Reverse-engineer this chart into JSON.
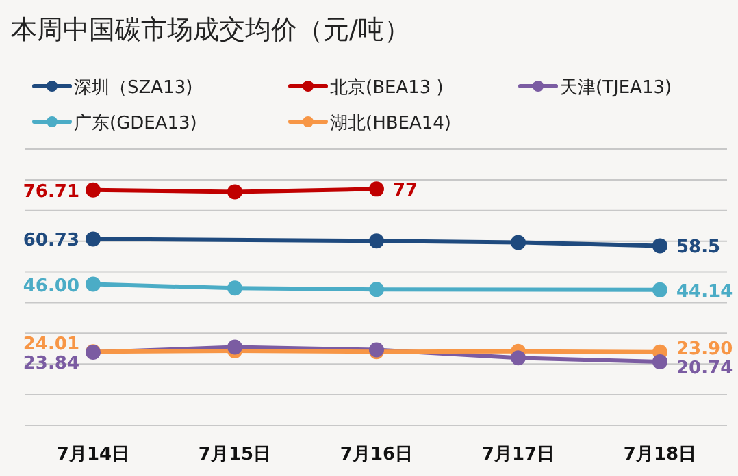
{
  "chart_data": {
    "type": "line",
    "title": "本周中国碳市场成交均价（元/吨）",
    "categories": [
      "7月14日",
      "7月15日",
      "7月16日",
      "7月17日",
      "7月18日"
    ],
    "series": [
      {
        "name": "深圳（SZA13)",
        "color": "#1f4a7e",
        "values": [
          60.73,
          null,
          60.1,
          59.6,
          58.5
        ],
        "value_labels": [
          "60.73",
          null,
          null,
          null,
          "58.5"
        ]
      },
      {
        "name": "北京(BEA13 )",
        "color": "#c00000",
        "values": [
          76.71,
          76.1,
          77,
          null,
          null
        ],
        "value_labels": [
          "76.71",
          null,
          "77",
          null,
          null
        ]
      },
      {
        "name": "天津(TJEA13)",
        "color": "#7b5ca2",
        "values": [
          23.84,
          25.5,
          24.6,
          22.0,
          20.74
        ],
        "value_labels": [
          "23.84",
          null,
          null,
          null,
          "20.74"
        ]
      },
      {
        "name": "广东(GDEA13)",
        "color": "#4bacc6",
        "values": [
          46.0,
          44.7,
          44.3,
          null,
          44.14
        ],
        "value_labels": [
          "46.00",
          null,
          null,
          null,
          "44.14"
        ]
      },
      {
        "name": "湖北(HBEA14)",
        "color": "#f79646",
        "values": [
          24.01,
          24.3,
          24.0,
          24.1,
          23.9
        ],
        "value_labels": [
          "24.01",
          null,
          null,
          null,
          "23.90"
        ]
      }
    ],
    "ylim": [
      0,
      90
    ],
    "yticks": [
      {
        "value": 0,
        "label": null
      },
      {
        "value": 10,
        "label": null
      },
      {
        "value": 20,
        "label": null
      },
      {
        "value": 30,
        "label": null
      },
      {
        "value": 40,
        "label": null
      },
      {
        "value": 50,
        "label": null
      },
      {
        "value": 60,
        "label": null
      },
      {
        "value": 70,
        "label": null
      },
      {
        "value": 80,
        "label": null
      },
      {
        "value": 90,
        "label": null
      }
    ],
    "tick_labels": "x",
    "grid": "y",
    "legend": "top left",
    "marker": "circle",
    "line_style": "solid"
  }
}
